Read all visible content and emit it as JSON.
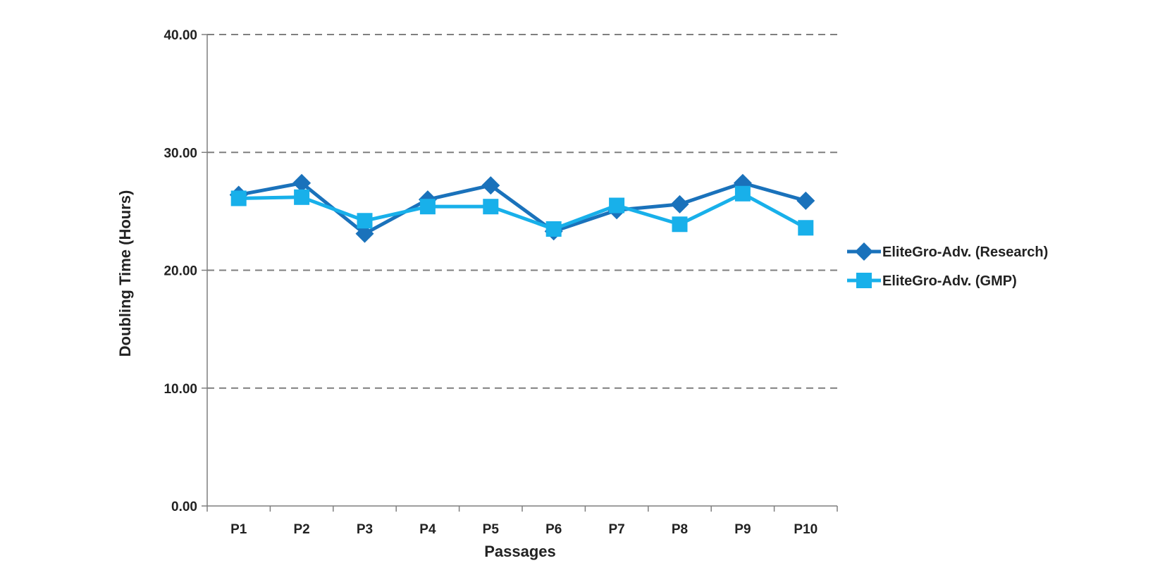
{
  "chart_data": {
    "type": "line",
    "title": "",
    "xlabel": "Passages",
    "ylabel": "Doubling Time (Hours)",
    "categories": [
      "P1",
      "P2",
      "P3",
      "P4",
      "P5",
      "P6",
      "P7",
      "P8",
      "P9",
      "P10"
    ],
    "ylim": [
      0,
      40
    ],
    "yticks": [
      "0.00",
      "10.00",
      "20.00",
      "30.00",
      "40.00"
    ],
    "grid": "horizontal dashed",
    "legend_position": "right",
    "series": [
      {
        "name": "EliteGro-Adv. (Research)",
        "marker": "diamond",
        "color": "#1a72bb",
        "values": [
          26.4,
          27.4,
          23.1,
          26.0,
          27.2,
          23.3,
          25.1,
          25.6,
          27.4,
          25.9
        ]
      },
      {
        "name": "EliteGro-Adv. (GMP)",
        "marker": "square",
        "color": "#18b0ea",
        "values": [
          26.1,
          26.2,
          24.2,
          25.4,
          25.4,
          23.5,
          25.5,
          23.9,
          26.5,
          23.6
        ]
      }
    ]
  }
}
